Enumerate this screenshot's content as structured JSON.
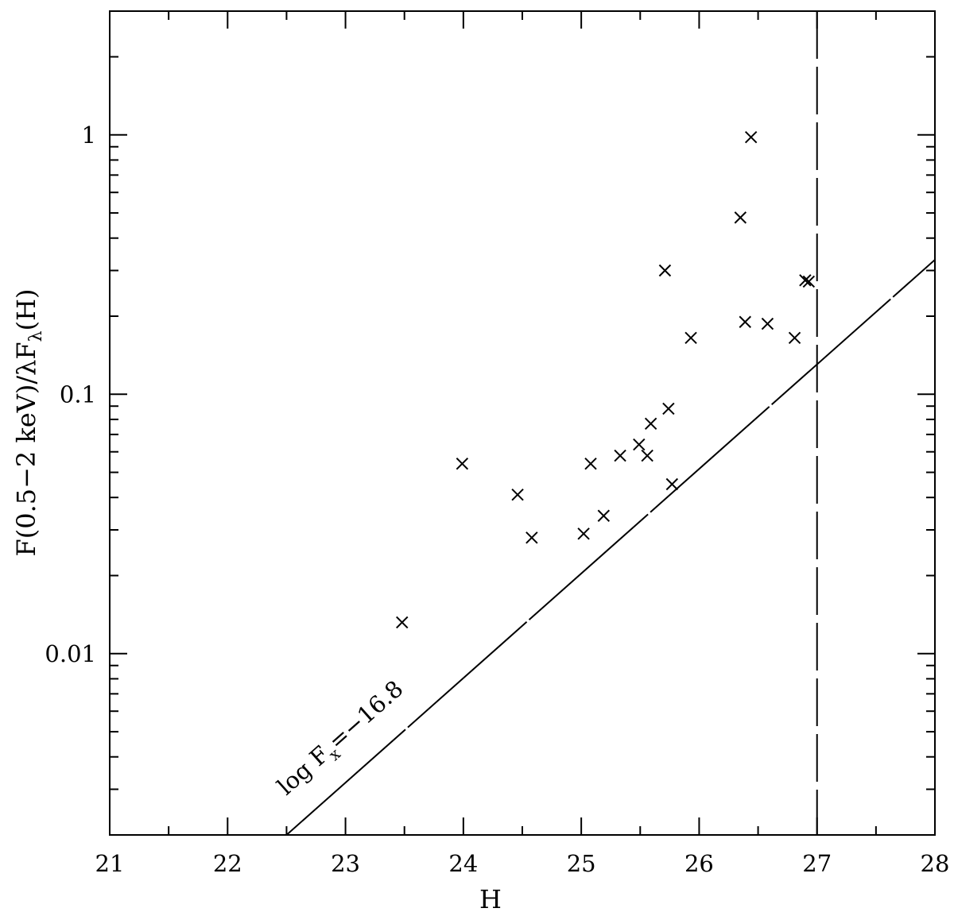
{
  "chart_data": {
    "type": "scatter",
    "title": "",
    "xlabel": "H",
    "ylabel": "F(0.5−2 keV)/λFλ(H)",
    "ylabel_parts": {
      "main": "F(0.5−2 keV)/λF",
      "sub": "λ",
      "tail": "(H)"
    },
    "xlim": [
      21,
      28
    ],
    "ylim": [
      0.002,
      3
    ],
    "yscale": "log",
    "grid": false,
    "legend": "none",
    "x_ticks": [
      "21",
      "22",
      "23",
      "24",
      "25",
      "26",
      "27",
      "28"
    ],
    "y_ticks": [
      {
        "value": 0.01,
        "label": "0.01"
      },
      {
        "value": 0.1,
        "label": "0.1"
      },
      {
        "value": 1,
        "label": "1"
      }
    ],
    "marker": "x",
    "points": [
      {
        "x": 23.48,
        "y": 0.0132
      },
      {
        "x": 23.99,
        "y": 0.054
      },
      {
        "x": 24.46,
        "y": 0.041
      },
      {
        "x": 24.58,
        "y": 0.028
      },
      {
        "x": 25.02,
        "y": 0.029
      },
      {
        "x": 25.08,
        "y": 0.054
      },
      {
        "x": 25.19,
        "y": 0.034
      },
      {
        "x": 25.33,
        "y": 0.058
      },
      {
        "x": 25.49,
        "y": 0.064
      },
      {
        "x": 25.56,
        "y": 0.058
      },
      {
        "x": 25.59,
        "y": 0.077
      },
      {
        "x": 25.71,
        "y": 0.3
      },
      {
        "x": 25.74,
        "y": 0.088
      },
      {
        "x": 25.77,
        "y": 0.045
      },
      {
        "x": 25.93,
        "y": 0.165
      },
      {
        "x": 26.35,
        "y": 0.48
      },
      {
        "x": 26.39,
        "y": 0.19
      },
      {
        "x": 26.44,
        "y": 0.98
      },
      {
        "x": 26.58,
        "y": 0.187
      },
      {
        "x": 26.81,
        "y": 0.165
      },
      {
        "x": 26.9,
        "y": 0.275
      },
      {
        "x": 26.93,
        "y": 0.272
      }
    ],
    "reference_line": {
      "label": "log F",
      "label_sub": "x",
      "label_tail": "=−16.8",
      "x": [
        22.5,
        28
      ],
      "y": [
        0.002,
        0.33
      ],
      "style": "long-dash"
    },
    "vertical_line": {
      "x": 27,
      "style": "dashed"
    }
  }
}
